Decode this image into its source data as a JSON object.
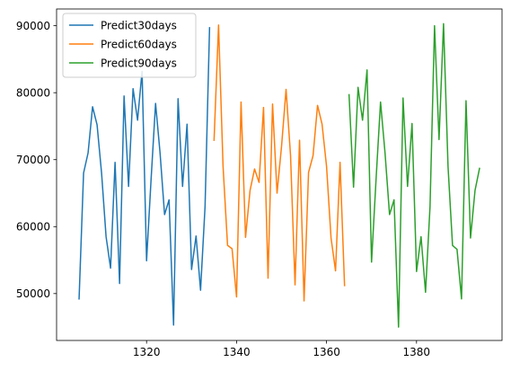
{
  "chart_data": {
    "type": "line",
    "title": "",
    "xlabel": "",
    "ylabel": "",
    "xlim": [
      1300,
      1399
    ],
    "ylim": [
      43000,
      92500
    ],
    "xticks": [
      1320,
      1340,
      1360,
      1380
    ],
    "yticks": [
      50000,
      60000,
      70000,
      80000,
      90000
    ],
    "grid": false,
    "legend_position": "top-left",
    "series": [
      {
        "name": "Predict30days",
        "color": "#1f77b4",
        "x0": 1305,
        "values": [
          49200,
          68000,
          71000,
          77900,
          75200,
          68000,
          58500,
          53800,
          69600,
          51500,
          79500,
          66000,
          80600,
          75900,
          83200,
          54900,
          67000,
          78400,
          71000,
          61800,
          64000,
          45300,
          79100,
          66000,
          75300,
          53600,
          58600,
          50500,
          63000,
          89700
        ]
      },
      {
        "name": "Predict60days",
        "color": "#ff7f0e",
        "x0": 1335,
        "values": [
          72900,
          90100,
          69000,
          57200,
          56700,
          49500,
          78600,
          58400,
          65400,
          68600,
          66600,
          77800,
          52300,
          78300,
          65000,
          72000,
          80500,
          70600,
          51300,
          72900,
          48900,
          68100,
          70600,
          78100,
          75300,
          69000,
          58300,
          53400,
          69600,
          51200
        ]
      },
      {
        "name": "Predict90days",
        "color": "#2ca02c",
        "x0": 1365,
        "values": [
          79700,
          65900,
          80800,
          75900,
          83400,
          54700,
          67000,
          78600,
          71000,
          61800,
          64000,
          45000,
          79200,
          66000,
          75400,
          53300,
          58500,
          50200,
          63000,
          90000,
          73000,
          90300,
          69000,
          57200,
          56600,
          49200,
          78800,
          58300,
          65400,
          68700
        ]
      }
    ]
  }
}
